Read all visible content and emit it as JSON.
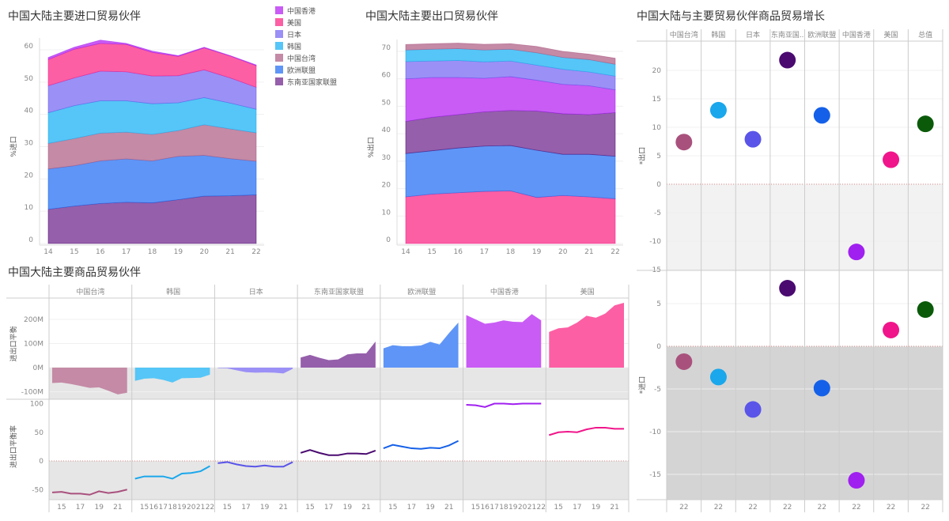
{
  "titles": {
    "imports": "中国大陆主要进口贸易伙伴",
    "exports": "中国大陆主要出口贸易伙伴",
    "growth": "中国大陆与主要贸易伙伴商品贸易增长",
    "balance": "中国大陆主要商品贸易伙伴"
  },
  "partners": {
    "hk": {
      "name": "中国香港",
      "area": "#c95cf5",
      "line": "#a020f0"
    },
    "us": {
      "name": "美国",
      "area": "#fc5fa4",
      "line": "#f0158a"
    },
    "jp": {
      "name": "日本",
      "area": "#9b90f6",
      "line": "#5a55e8"
    },
    "kr": {
      "name": "韩国",
      "area": "#55c6f7",
      "line": "#1aa7ec"
    },
    "tw": {
      "name": "中国台湾",
      "area": "#c48aa6",
      "line": "#a9517d"
    },
    "eu": {
      "name": "欧洲联盟",
      "area": "#5f95f6",
      "line": "#1560e8"
    },
    "asean": {
      "name": "东南亚国家联盟",
      "area": "#955fab",
      "line": "#4a0a70"
    },
    "total": {
      "name": "总值",
      "line": "#0a5a0a"
    }
  },
  "legend": [
    "hk",
    "us",
    "jp",
    "kr",
    "tw",
    "eu",
    "asean"
  ],
  "chart_data": [
    {
      "id": "imports",
      "type": "area",
      "stacked": true,
      "title": "中国大陆主要进口贸易伙伴",
      "ylabel": "%进口",
      "x": [
        "14",
        "15",
        "16",
        "17",
        "18",
        "19",
        "20",
        "21",
        "22"
      ],
      "ylim": [
        0,
        60
      ],
      "yticks": [
        "0",
        "10",
        "20",
        "30",
        "40",
        "50",
        "60"
      ],
      "legend_position": "right",
      "series": [
        {
          "key": "asean",
          "values": [
            10.6,
            11.6,
            12.4,
            12.8,
            12.6,
            13.6,
            14.7,
            14.8,
            15.1
          ]
        },
        {
          "key": "eu",
          "values": [
            12.5,
            12.5,
            13.2,
            13.4,
            13.0,
            13.4,
            12.6,
            11.5,
            10.4
          ]
        },
        {
          "key": "tw",
          "values": [
            7.9,
            8.4,
            8.6,
            8.3,
            8.2,
            8.0,
            9.5,
            9.2,
            8.8
          ]
        },
        {
          "key": "kr",
          "values": [
            9.5,
            10.2,
            10.0,
            9.7,
            9.5,
            8.6,
            8.4,
            8.0,
            7.3
          ]
        },
        {
          "key": "jp",
          "values": [
            8.4,
            8.6,
            9.2,
            9.0,
            8.6,
            8.4,
            8.6,
            7.8,
            6.8
          ]
        },
        {
          "key": "us",
          "values": [
            8.1,
            8.9,
            8.6,
            8.5,
            7.3,
            6.0,
            6.8,
            6.8,
            6.7
          ]
        },
        {
          "key": "hk",
          "values": [
            0.6,
            0.6,
            1.0,
            0.3,
            0.4,
            0.2,
            0.2,
            0.1,
            0.2
          ]
        }
      ]
    },
    {
      "id": "exports",
      "type": "area",
      "stacked": true,
      "title": "中国大陆主要出口贸易伙伴",
      "ylabel": "%出口",
      "x": [
        "14",
        "15",
        "16",
        "17",
        "18",
        "19",
        "20",
        "21",
        "22"
      ],
      "ylim": [
        0,
        70
      ],
      "yticks": [
        "0",
        "10",
        "20",
        "30",
        "40",
        "50",
        "60",
        "70"
      ],
      "series": [
        {
          "key": "us",
          "values": [
            17.0,
            18.0,
            18.5,
            19.0,
            19.2,
            16.8,
            17.5,
            17.0,
            16.3
          ]
        },
        {
          "key": "eu",
          "values": [
            15.8,
            15.8,
            16.3,
            16.5,
            16.5,
            17.2,
            15.0,
            15.5,
            15.5
          ]
        },
        {
          "key": "asean",
          "values": [
            11.7,
            12.2,
            12.2,
            12.5,
            12.8,
            14.3,
            14.8,
            14.5,
            15.9
          ]
        },
        {
          "key": "hk",
          "values": [
            15.5,
            14.5,
            13.5,
            12.2,
            12.3,
            11.2,
            10.7,
            10.5,
            8.3
          ]
        },
        {
          "key": "jp",
          "values": [
            6.3,
            6.0,
            6.2,
            6.0,
            5.7,
            5.5,
            5.5,
            5.0,
            5.0
          ]
        },
        {
          "key": "kr",
          "values": [
            4.2,
            4.3,
            4.3,
            4.3,
            4.3,
            4.5,
            4.3,
            4.5,
            4.3
          ]
        },
        {
          "key": "tw",
          "values": [
            2.0,
            2.0,
            2.0,
            2.1,
            2.0,
            2.3,
            2.2,
            2.0,
            2.2
          ]
        }
      ]
    },
    {
      "id": "balance",
      "type": "area",
      "title": "中国大陆主要商品贸易伙伴",
      "ylabel": "进出口平衡",
      "x": [
        "14",
        "15",
        "16",
        "17",
        "18",
        "19",
        "20",
        "21",
        "22"
      ],
      "ylim": [
        -130,
        285
      ],
      "yticks": [
        {
          "v": 200,
          "label": "200M"
        },
        {
          "v": 100,
          "label": "100M"
        },
        {
          "v": 0,
          "label": "0M"
        },
        {
          "v": -100,
          "label": "-100M"
        }
      ],
      "columns": [
        "tw",
        "kr",
        "jp",
        "asean",
        "eu",
        "hk",
        "us"
      ],
      "values": {
        "tw": [
          -64,
          -62,
          -68,
          -76,
          -84,
          -82,
          -96,
          -111,
          -104
        ],
        "kr": [
          -55,
          -46,
          -44,
          -51,
          -62,
          -44,
          -43,
          -42,
          -29
        ],
        "jp": [
          -2,
          -3,
          -11,
          -19,
          -21,
          -20,
          -21,
          -24,
          -5
        ],
        "asean": [
          42,
          53,
          41,
          31,
          34,
          55,
          59,
          59,
          108
        ],
        "eu": [
          80,
          93,
          89,
          89,
          92,
          107,
          96,
          143,
          187
        ],
        "hk": [
          218,
          200,
          182,
          187,
          196,
          190,
          189,
          222,
          196
        ],
        "us": [
          148,
          163,
          167,
          187,
          215,
          207,
          224,
          258,
          269
        ]
      }
    },
    {
      "id": "balance_rate",
      "type": "line",
      "ylabel": "进出口平衡率",
      "x": [
        "14",
        "15",
        "16",
        "17",
        "18",
        "19",
        "20",
        "21",
        "22"
      ],
      "ylim": [
        -68,
        108
      ],
      "yticks": [
        {
          "v": 100,
          "label": "100"
        },
        {
          "v": 50,
          "label": "50"
        },
        {
          "v": 0,
          "label": "0"
        },
        {
          "v": -50,
          "label": "-50"
        }
      ],
      "xtick_labels": {
        "tw": [
          "15",
          "17",
          "19",
          "21"
        ],
        "kr": [
          "15",
          "16",
          "17",
          "18",
          "19",
          "20",
          "21",
          "22"
        ],
        "jp": [
          "15",
          "17",
          "19",
          "21"
        ],
        "asean": [
          "15",
          "17",
          "19",
          "21"
        ],
        "eu": [
          "15",
          "17",
          "19",
          "21"
        ],
        "hk": [
          "15",
          "16",
          "17",
          "18",
          "19",
          "20",
          "21",
          "22"
        ],
        "us": [
          "15",
          "17",
          "19",
          "21"
        ]
      },
      "values": {
        "tw": [
          -55,
          -54,
          -57,
          -57,
          -59,
          -53,
          -56,
          -54,
          -50
        ],
        "kr": [
          -31,
          -27,
          -27,
          -27,
          -31,
          -22,
          -21,
          -18,
          -9
        ],
        "jp": [
          -4,
          -2,
          -6,
          -9,
          -10,
          -8,
          -10,
          -10,
          -2
        ],
        "asean": [
          14,
          19,
          14,
          10,
          10,
          13,
          13,
          12,
          18
        ],
        "eu": [
          22,
          28,
          25,
          22,
          21,
          23,
          22,
          27,
          35
        ],
        "hk": [
          98,
          97,
          94,
          100,
          100,
          99,
          100,
          100,
          100
        ],
        "us": [
          45,
          50,
          51,
          50,
          55,
          58,
          58,
          56,
          56
        ]
      }
    },
    {
      "id": "export_growth",
      "type": "scatter",
      "title": "中国大陆与主要贸易伙伴商品贸易增长",
      "ylabel": "*出口",
      "columns": [
        "tw",
        "kr",
        "jp",
        "asean",
        "eu",
        "hk",
        "us",
        "total"
      ],
      "column_headers": [
        "中国台湾",
        "韩国",
        "日本",
        "东南亚国..",
        "欧洲联盟",
        "中国香港",
        "美国",
        "总值"
      ],
      "x": "22",
      "ylim": [
        -15.1,
        25
      ],
      "yticks": [
        "20",
        "15",
        "10",
        "5",
        "0",
        "-5",
        "-10",
        "-15"
      ],
      "values": [
        7.4,
        13.0,
        7.9,
        21.8,
        12.1,
        -11.9,
        4.3,
        10.6
      ]
    },
    {
      "id": "import_growth",
      "type": "scatter",
      "ylabel": "*进口",
      "columns": [
        "tw",
        "kr",
        "jp",
        "asean",
        "eu",
        "hk",
        "us",
        "total"
      ],
      "x": "22",
      "ylim": [
        -18,
        8.8
      ],
      "yticks": [
        "5",
        "0",
        "-5",
        "-10",
        "-15"
      ],
      "values": [
        -1.8,
        -3.6,
        -7.4,
        6.8,
        -4.9,
        -15.7,
        1.9,
        4.3
      ]
    }
  ]
}
